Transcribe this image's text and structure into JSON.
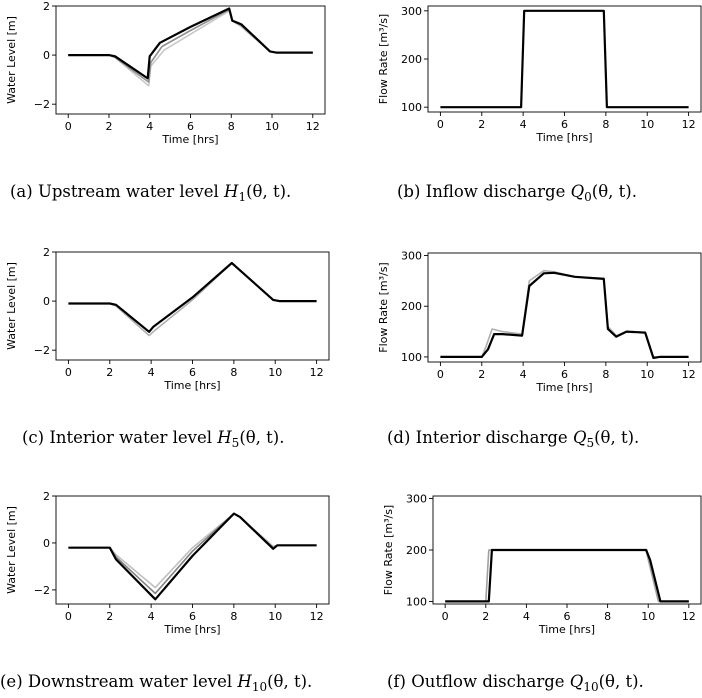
{
  "chart_data": [
    {
      "type": "line",
      "panel": "a",
      "caption": {
        "pre": "(a) Upstream water level ",
        "sym": "H",
        "sub": "1",
        "post": "(θ, t)."
      },
      "xlabel": "Time [hrs]",
      "ylabel": "Water Level [m]",
      "xlim": [
        -0.6,
        12.6
      ],
      "ylim": [
        -2.4,
        2.0
      ],
      "xticks": [
        0,
        2,
        4,
        6,
        8,
        10,
        12
      ],
      "yticks": [
        -2,
        0,
        2
      ],
      "ytick_labels": [
        "−2",
        "0",
        "2"
      ],
      "series_style": "ensemble of curves, light gray to black",
      "series": [
        {
          "name": "",
          "shade": "#c8c8c8",
          "x": [
            0,
            2.0,
            2.3,
            3.95,
            4.05,
            4.7,
            6,
            7.9,
            8.05,
            8.5,
            9.9,
            10.2,
            12
          ],
          "y": [
            0,
            0,
            -0.1,
            -1.25,
            -0.45,
            0.2,
            0.85,
            1.8,
            1.4,
            1.15,
            0.15,
            0.1,
            0.1
          ]
        },
        {
          "name": "",
          "shade": "#909090",
          "x": [
            0,
            2.0,
            2.3,
            3.95,
            4.05,
            4.6,
            6,
            7.9,
            8.05,
            8.5,
            9.9,
            10.2,
            12
          ],
          "y": [
            0,
            0,
            -0.1,
            -1.1,
            -0.3,
            0.35,
            1.0,
            1.85,
            1.4,
            1.2,
            0.15,
            0.1,
            0.1
          ]
        },
        {
          "name": "",
          "shade": "#000000",
          "x": [
            0,
            2.0,
            2.3,
            3.9,
            4.0,
            4.5,
            6,
            7.9,
            8.05,
            8.5,
            9.9,
            10.2,
            12
          ],
          "y": [
            0,
            0,
            -0.05,
            -0.95,
            -0.05,
            0.5,
            1.15,
            1.9,
            1.4,
            1.25,
            0.15,
            0.1,
            0.1
          ]
        }
      ]
    },
    {
      "type": "line",
      "panel": "b",
      "caption": {
        "pre": "(b) Inflow discharge ",
        "sym": "Q",
        "sub": "0",
        "post": "(θ, t)."
      },
      "xlabel": "Time [hrs]",
      "ylabel": "Flow Rate [m³/s]",
      "xlim": [
        -0.6,
        12.6
      ],
      "ylim": [
        90,
        310
      ],
      "xticks": [
        0,
        2,
        4,
        6,
        8,
        10,
        12
      ],
      "yticks": [
        100,
        200,
        300
      ],
      "ytick_labels": [
        "100",
        "200",
        "300"
      ],
      "series": [
        {
          "name": "",
          "shade": "#000000",
          "x": [
            0,
            3.9,
            4.05,
            7.9,
            8.05,
            12
          ],
          "y": [
            100,
            100,
            300,
            300,
            100,
            100
          ]
        }
      ]
    },
    {
      "type": "line",
      "panel": "c",
      "caption": {
        "pre": "(c) Interior water level ",
        "sym": "H",
        "sub": "5",
        "post": "(θ, t)."
      },
      "xlabel": "Time [hrs]",
      "ylabel": "Water Level [m]",
      "xlim": [
        -0.6,
        12.6
      ],
      "ylim": [
        -2.4,
        2.0
      ],
      "xticks": [
        0,
        2,
        4,
        6,
        8,
        10,
        12
      ],
      "yticks": [
        -2,
        0,
        2
      ],
      "ytick_labels": [
        "−2",
        "0",
        "2"
      ],
      "series": [
        {
          "name": "",
          "shade": "#b0b0b0",
          "x": [
            0,
            2.0,
            2.3,
            3.9,
            4.1,
            6,
            7.9,
            8.1,
            9.9,
            10.2,
            12
          ],
          "y": [
            -0.1,
            -0.1,
            -0.2,
            -1.4,
            -1.25,
            0.05,
            1.55,
            1.4,
            0.05,
            0.0,
            0.0
          ]
        },
        {
          "name": "",
          "shade": "#000000",
          "x": [
            0,
            2.0,
            2.3,
            3.9,
            4.1,
            6,
            7.9,
            8.1,
            9.9,
            10.2,
            12
          ],
          "y": [
            -0.1,
            -0.1,
            -0.15,
            -1.25,
            -1.05,
            0.15,
            1.55,
            1.4,
            0.05,
            0.0,
            0.0
          ]
        }
      ]
    },
    {
      "type": "line",
      "panel": "d",
      "caption": {
        "pre": "(d) Interior discharge ",
        "sym": "Q",
        "sub": "5",
        "post": "(θ, t)."
      },
      "xlabel": "Time [hrs]",
      "ylabel": "Flow Rate [m³/s]",
      "xlim": [
        -0.6,
        12.6
      ],
      "ylim": [
        90,
        305
      ],
      "xticks": [
        0,
        2,
        4,
        6,
        8,
        10,
        12
      ],
      "yticks": [
        100,
        200,
        300
      ],
      "ytick_labels": [
        "100",
        "200",
        "300"
      ],
      "series": [
        {
          "name": "",
          "shade": "#b0b0b0",
          "x": [
            0,
            2.0,
            2.2,
            2.5,
            3.0,
            3.95,
            4.3,
            5.0,
            5.5,
            6.5,
            7.9,
            8.1,
            8.5,
            9.0,
            9.9,
            10.3,
            10.6,
            12
          ],
          "y": [
            100,
            100,
            120,
            155,
            150,
            145,
            250,
            270,
            268,
            258,
            255,
            160,
            142,
            150,
            148,
            100,
            100,
            100
          ]
        },
        {
          "name": "",
          "shade": "#000000",
          "x": [
            0,
            2.0,
            2.3,
            2.6,
            3.0,
            3.95,
            4.3,
            5.0,
            5.5,
            6.5,
            7.9,
            8.1,
            8.5,
            9.0,
            9.9,
            10.3,
            10.6,
            12
          ],
          "y": [
            100,
            100,
            115,
            145,
            145,
            142,
            240,
            265,
            266,
            258,
            254,
            155,
            140,
            150,
            148,
            98,
            100,
            100
          ]
        }
      ]
    },
    {
      "type": "line",
      "panel": "e",
      "caption": {
        "pre": "(e) Downstream water level ",
        "sym": "H",
        "sub": "10",
        "post": "(θ, t)."
      },
      "xlabel": "Time [hrs]",
      "ylabel": "Water Level [m]",
      "xlim": [
        -0.6,
        12.6
      ],
      "ylim": [
        -2.6,
        2.0
      ],
      "xticks": [
        0,
        2,
        4,
        6,
        8,
        10,
        12
      ],
      "yticks": [
        -2,
        0,
        2
      ],
      "ytick_labels": [
        "−2",
        "0",
        "2"
      ],
      "series": [
        {
          "name": "",
          "shade": "#c0c0c0",
          "x": [
            0,
            2.0,
            2.3,
            4.2,
            6,
            8.0,
            8.3,
            9.9,
            10.1,
            12
          ],
          "y": [
            -0.2,
            -0.2,
            -0.5,
            -1.9,
            -0.2,
            1.25,
            1.1,
            -0.15,
            -0.1,
            -0.1
          ]
        },
        {
          "name": "",
          "shade": "#808080",
          "x": [
            0,
            2.0,
            2.3,
            4.2,
            6,
            8.0,
            8.3,
            9.9,
            10.1,
            12
          ],
          "y": [
            -0.2,
            -0.2,
            -0.6,
            -2.15,
            -0.35,
            1.25,
            1.1,
            -0.2,
            -0.1,
            -0.1
          ]
        },
        {
          "name": "",
          "shade": "#000000",
          "x": [
            0,
            2.0,
            2.3,
            4.2,
            6,
            8.0,
            8.3,
            9.9,
            10.1,
            12
          ],
          "y": [
            -0.2,
            -0.2,
            -0.7,
            -2.4,
            -0.55,
            1.25,
            1.1,
            -0.25,
            -0.1,
            -0.1
          ]
        }
      ]
    },
    {
      "type": "line",
      "panel": "f",
      "caption": {
        "pre": "(f) Outflow discharge ",
        "sym": "Q",
        "sub": "10",
        "post": "(θ, t)."
      },
      "xlabel": "Time [hrs]",
      "ylabel": "Flow Rate [m³/s]",
      "xlim": [
        -0.6,
        12.6
      ],
      "ylim": [
        95,
        305
      ],
      "xticks": [
        0,
        2,
        4,
        6,
        8,
        10,
        12
      ],
      "yticks": [
        100,
        200,
        300
      ],
      "ytick_labels": [
        "100",
        "200",
        "300"
      ],
      "series": [
        {
          "name": "",
          "shade": "#a0a0a0",
          "x": [
            0,
            2.0,
            2.15,
            9.8,
            9.9,
            10.5,
            12
          ],
          "y": [
            100,
            100,
            200,
            200,
            198,
            100,
            100
          ]
        },
        {
          "name": "",
          "shade": "#000000",
          "x": [
            0,
            2.15,
            2.3,
            9.9,
            10.1,
            10.6,
            12
          ],
          "y": [
            100,
            100,
            200,
            200,
            180,
            100,
            100
          ]
        }
      ]
    }
  ]
}
